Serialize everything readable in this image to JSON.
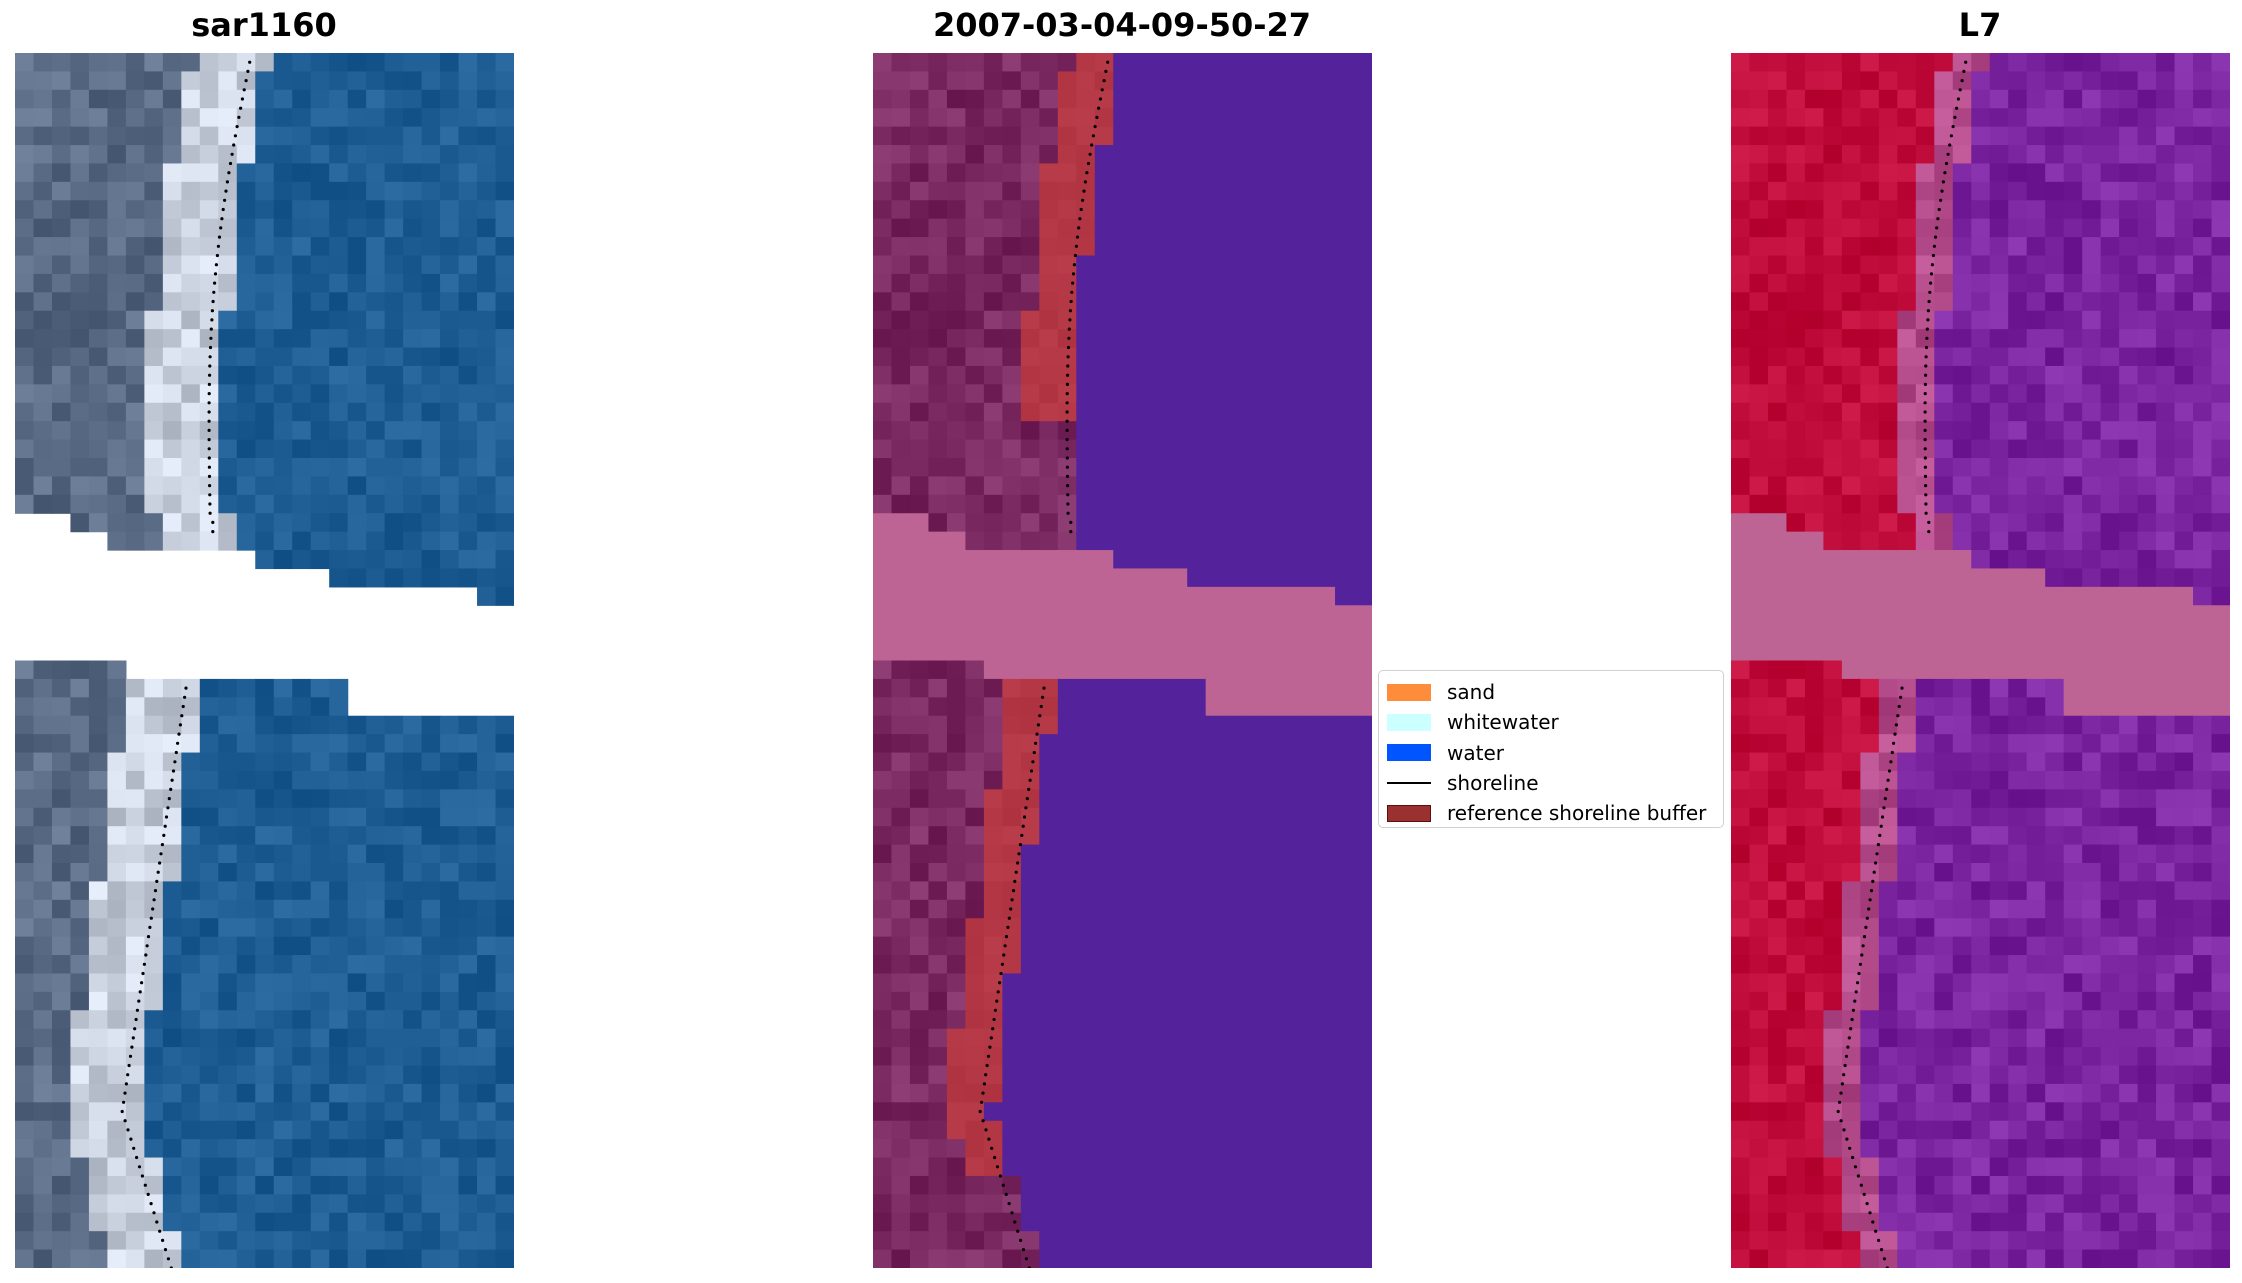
{
  "panels": [
    {
      "title": "sar1160",
      "kind": "rgb"
    },
    {
      "title": "2007-03-04-09-50-27",
      "kind": "classified"
    },
    {
      "title": "L7",
      "kind": "mndwi"
    }
  ],
  "legend": {
    "items": [
      {
        "label": "sand",
        "type": "patch",
        "color": "#ff8c3a"
      },
      {
        "label": "whitewater",
        "type": "patch",
        "color": "#ccffff"
      },
      {
        "label": "water",
        "type": "patch",
        "color": "#0055ff"
      },
      {
        "label": "shoreline",
        "type": "line",
        "color": "#000000"
      },
      {
        "label": "reference shoreline buffer",
        "type": "patch",
        "color": "#9a3030",
        "edge": "#5a1010"
      }
    ]
  },
  "colors": {
    "rgb_land": "#5a6b85",
    "rgb_sand": "#c7d0dc",
    "rgb_water": "#1e5d93",
    "class_land": "#7a2a60",
    "class_water": "#54229a",
    "class_buffer": "#b43745",
    "class_gap": "#bd6494",
    "ndwi_land": "#c00c3a",
    "ndwi_water": "#7a24a0",
    "ndwi_gap": "#bd6494",
    "shoreline": "#000000"
  }
}
